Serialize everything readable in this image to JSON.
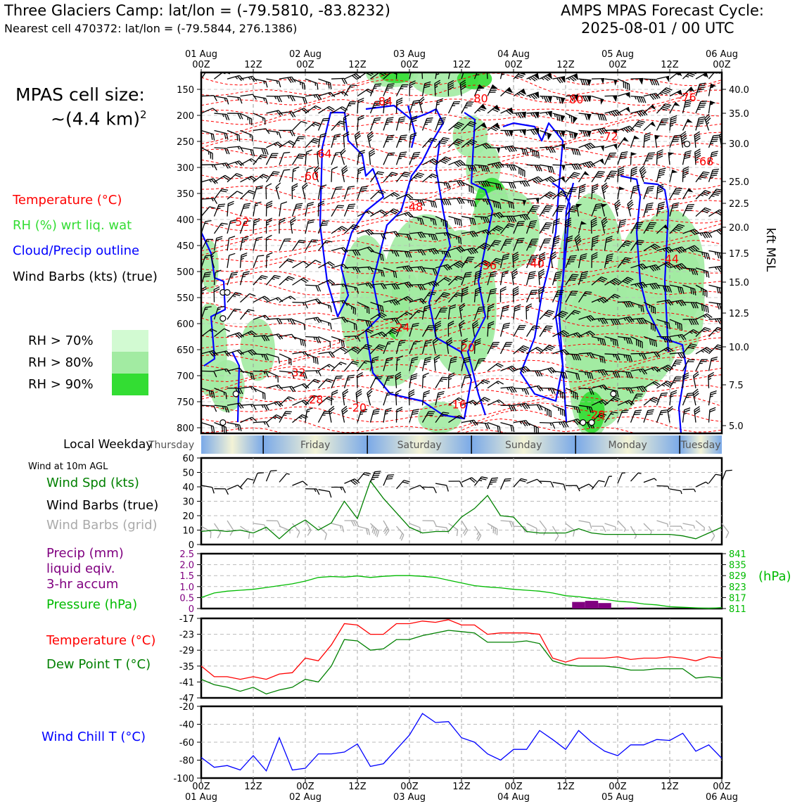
{
  "header": {
    "station_title": "Three Glaciers Camp: lat/lon = (-79.5810, -83.8232)",
    "nearest_cell": "Nearest cell 470372: lat/lon = (-79.5844, 276.1386)",
    "cycle_label": "AMPS MPAS Forecast Cycle:",
    "cycle_value": "2025-08-01 / 00 UTC"
  },
  "left_panel": {
    "cell_size_label": "MPAS cell size:",
    "cell_size_value": "~(4.4 km)",
    "cell_size_exp": "2",
    "legend": {
      "temperature": "Temperature (°C)",
      "rh": "RH (%) wrt liq. wat",
      "cloud": "Cloud/Precip outline",
      "wind": "Wind Barbs (kts) (true)"
    },
    "rh_legend": [
      {
        "label": "RH > 70%",
        "color": "#d2fad2"
      },
      {
        "label": "RH > 80%",
        "color": "#a2eba2"
      },
      {
        "label": "RH > 90%",
        "color": "#33dd33"
      }
    ]
  },
  "colors": {
    "temperature": "#ff0000",
    "rh": "#33dd33",
    "cloud": "#0000ff",
    "wind_true": "#000000",
    "wind_grid": "#aaaaaa",
    "wind_speed": "#008000",
    "precip": "#800080",
    "pressure": "#00bb00",
    "dewpoint": "#008000",
    "windchill": "#0000ff"
  },
  "time_axis": {
    "top_dates": [
      "01 Aug",
      "",
      "02 Aug",
      "",
      "03 Aug",
      "",
      "04 Aug",
      "",
      "05 Aug",
      "",
      "06 Aug"
    ],
    "hour_labels": [
      "00Z",
      "12Z",
      "00Z",
      "12Z",
      "00Z",
      "12Z",
      "00Z",
      "12Z",
      "00Z",
      "12Z",
      "00Z"
    ],
    "bottom_dates": [
      "01 Aug",
      "",
      "02 Aug",
      "",
      "03 Aug",
      "",
      "04 Aug",
      "",
      "05 Aug",
      "",
      "06 Aug"
    ]
  },
  "weekday_bar": {
    "label": "Local Weekday",
    "days": [
      "Thursday",
      "Friday",
      "Saturday",
      "Sunday",
      "Monday",
      "Tuesday"
    ]
  },
  "wind_panel": {
    "title": "Wind at 10m AGL",
    "spd_label": "Wind Spd (kts)",
    "true_label": "Wind Barbs (true)",
    "grid_label": "Wind Barbs (grid)"
  },
  "precip_panel": {
    "label_1": "Precip (mm)",
    "label_2": "liquid eqiv.",
    "label_3": "3-hr accum",
    "pressure_label": "Pressure (hPa)",
    "pressure_unit": "(hPa)"
  },
  "temp_panel": {
    "temp_label": "Temperature (°C)",
    "dew_label": "Dew Point T (°C)"
  },
  "windchill_panel": {
    "label": "Wind Chill T (°C)"
  },
  "chart_data": [
    {
      "type": "heatmap",
      "yaxis_left_ticks": [
        "150",
        "200",
        "250",
        "300",
        "350",
        "400",
        "450",
        "500",
        "550",
        "600",
        "650",
        "700",
        "750",
        "800"
      ],
      "yaxis_right_ticks": [
        "40.0",
        "35.0",
        "30.0",
        "25.0",
        "22.5",
        "20.0",
        "17.5",
        "15.0",
        "12.5",
        "10.0",
        "7.5",
        "5.0"
      ],
      "yaxis_right_label": "kft MSL",
      "isotherm_labels": [
        {
          "text": "-84",
          "t": 42,
          "p": 172
        },
        {
          "text": "-80",
          "t": 64,
          "p": 167
        },
        {
          "text": "-80",
          "t": 86,
          "p": 169
        },
        {
          "text": "-76",
          "t": 112,
          "p": 165
        },
        {
          "text": "-72",
          "t": 94,
          "p": 240
        },
        {
          "text": "-64",
          "t": 28,
          "p": 273
        },
        {
          "text": "-68",
          "t": 116,
          "p": 288
        },
        {
          "text": "-60",
          "t": 25,
          "p": 316
        },
        {
          "text": "-52",
          "t": 9,
          "p": 404
        },
        {
          "text": "-48",
          "t": 49,
          "p": 375
        },
        {
          "text": "-40",
          "t": 77,
          "p": 484
        },
        {
          "text": "-36",
          "t": 66,
          "p": 488
        },
        {
          "text": "-44",
          "t": 108,
          "p": 475
        },
        {
          "text": "-24",
          "t": 46,
          "p": 607
        },
        {
          "text": "-20",
          "t": 61,
          "p": 645
        },
        {
          "text": "-32",
          "t": 22,
          "p": 693
        },
        {
          "text": "-28",
          "t": 26,
          "p": 745
        },
        {
          "text": "-20",
          "t": 36,
          "p": 761
        },
        {
          "text": "-16",
          "t": 59,
          "p": 755
        },
        {
          "text": "-28",
          "t": 91,
          "p": 774
        }
      ]
    },
    {
      "type": "line",
      "name": "Wind Spd (kts)",
      "ylim": [
        0,
        60
      ],
      "yticks": [
        "0",
        "10",
        "20",
        "30",
        "40",
        "50",
        "60"
      ],
      "x_hours": [
        0,
        3,
        6,
        9,
        12,
        15,
        18,
        21,
        24,
        27,
        30,
        33,
        36,
        39,
        42,
        45,
        48,
        51,
        54,
        57,
        60,
        63,
        66,
        69,
        72,
        75,
        78,
        81,
        84,
        87,
        90,
        93,
        96,
        99,
        102,
        105,
        108,
        111,
        114,
        117,
        120
      ],
      "values": [
        9,
        10,
        9,
        10,
        8,
        12,
        4,
        12,
        17,
        10,
        15,
        30,
        18,
        44,
        32,
        22,
        12,
        8,
        9,
        9,
        19,
        25,
        34,
        20,
        19,
        9,
        8,
        8,
        8,
        11,
        8,
        7,
        7,
        7,
        7,
        7,
        7,
        6,
        4,
        8,
        12
      ]
    },
    {
      "type": "bar",
      "name": "Precip (mm)",
      "ylim": [
        0,
        2.5
      ],
      "yticks": [
        "0",
        "0.5",
        "1.0",
        "1.5",
        "2.0",
        "2.5"
      ],
      "x_hours": [
        87,
        90,
        93,
        99
      ],
      "values": [
        0.3,
        0.35,
        0.25,
        0.05
      ],
      "pressure": {
        "ylim": [
          811,
          841
        ],
        "yticks": [
          "811",
          "817",
          "823",
          "829",
          "835",
          "841"
        ],
        "x_hours": [
          0,
          3,
          6,
          9,
          12,
          15,
          18,
          21,
          24,
          27,
          30,
          33,
          36,
          39,
          42,
          45,
          48,
          51,
          54,
          57,
          60,
          63,
          66,
          69,
          72,
          75,
          78,
          81,
          84,
          87,
          90,
          93,
          96,
          99,
          102,
          105,
          108,
          111,
          114,
          117,
          120
        ],
        "values": [
          817,
          819.5,
          820.5,
          821,
          821.5,
          822.5,
          823.5,
          824.5,
          826,
          828,
          828.5,
          828.2,
          828.8,
          828,
          828.6,
          829,
          829,
          828.6,
          828,
          826.5,
          825,
          823.5,
          822.8,
          822.3,
          821.5,
          821,
          820.5,
          819.5,
          818,
          817.5,
          816.5,
          816,
          815,
          814.5,
          813.5,
          813,
          812,
          811.7,
          811.4,
          811.1,
          811.5
        ]
      }
    },
    {
      "type": "line",
      "ylim": [
        -47,
        -17
      ],
      "yticks": [
        "-17",
        "-23",
        "-29",
        "-35",
        "-41",
        "-47"
      ],
      "x_hours": [
        0,
        3,
        6,
        9,
        12,
        15,
        18,
        21,
        24,
        27,
        30,
        33,
        36,
        39,
        42,
        45,
        48,
        51,
        54,
        57,
        60,
        63,
        66,
        69,
        72,
        75,
        78,
        81,
        84,
        87,
        90,
        93,
        96,
        99,
        102,
        105,
        108,
        111,
        114,
        117,
        120
      ],
      "series": [
        {
          "name": "Temperature (°C)",
          "values": [
            -35,
            -39,
            -39,
            -40,
            -39,
            -40,
            -38,
            -37.5,
            -32,
            -33,
            -27,
            -19,
            -19.5,
            -23,
            -23,
            -19,
            -19,
            -18,
            -18.5,
            -17.5,
            -19.5,
            -19.5,
            -23,
            -22.5,
            -22.5,
            -22.5,
            -23,
            -32,
            -33.5,
            -32,
            -32,
            -32,
            -31.5,
            -32.5,
            -32,
            -32,
            -31.5,
            -32,
            -33,
            -31.5,
            -32
          ]
        },
        {
          "name": "Dew Point T (°C)",
          "values": [
            -40,
            -42,
            -43,
            -44.5,
            -43,
            -45.5,
            -44,
            -43,
            -40,
            -41,
            -35,
            -25,
            -25.5,
            -29,
            -28.5,
            -25,
            -25,
            -23.5,
            -22.5,
            -21.5,
            -22,
            -22.5,
            -26,
            -26,
            -26,
            -25.5,
            -26.5,
            -33,
            -34.5,
            -35,
            -35,
            -35,
            -35.5,
            -36.5,
            -36.5,
            -36,
            -36,
            -36,
            -39.5,
            -39,
            -39.5
          ]
        }
      ]
    },
    {
      "type": "line",
      "name": "Wind Chill T (°C)",
      "ylim": [
        -100,
        -20
      ],
      "yticks": [
        "-20",
        "-40",
        "-60",
        "-80",
        "-100"
      ],
      "x_hours": [
        0,
        3,
        6,
        9,
        12,
        15,
        18,
        21,
        24,
        27,
        30,
        33,
        36,
        39,
        42,
        45,
        48,
        51,
        54,
        57,
        60,
        63,
        66,
        69,
        72,
        75,
        78,
        81,
        84,
        87,
        90,
        93,
        96,
        99,
        102,
        105,
        108,
        111,
        114,
        117,
        120
      ],
      "values": [
        -77,
        -88,
        -86,
        -91,
        -75,
        -92,
        -55,
        -91,
        -89,
        -73,
        -73,
        -71,
        -62,
        -87,
        -84,
        -68,
        -52,
        -28,
        -38,
        -37,
        -55,
        -60,
        -73,
        -80,
        -68,
        -68,
        -47,
        -57,
        -68,
        -47,
        -60,
        -70,
        -75,
        -63,
        -63,
        -57,
        -58,
        -50,
        -70,
        -63,
        -78
      ]
    }
  ]
}
